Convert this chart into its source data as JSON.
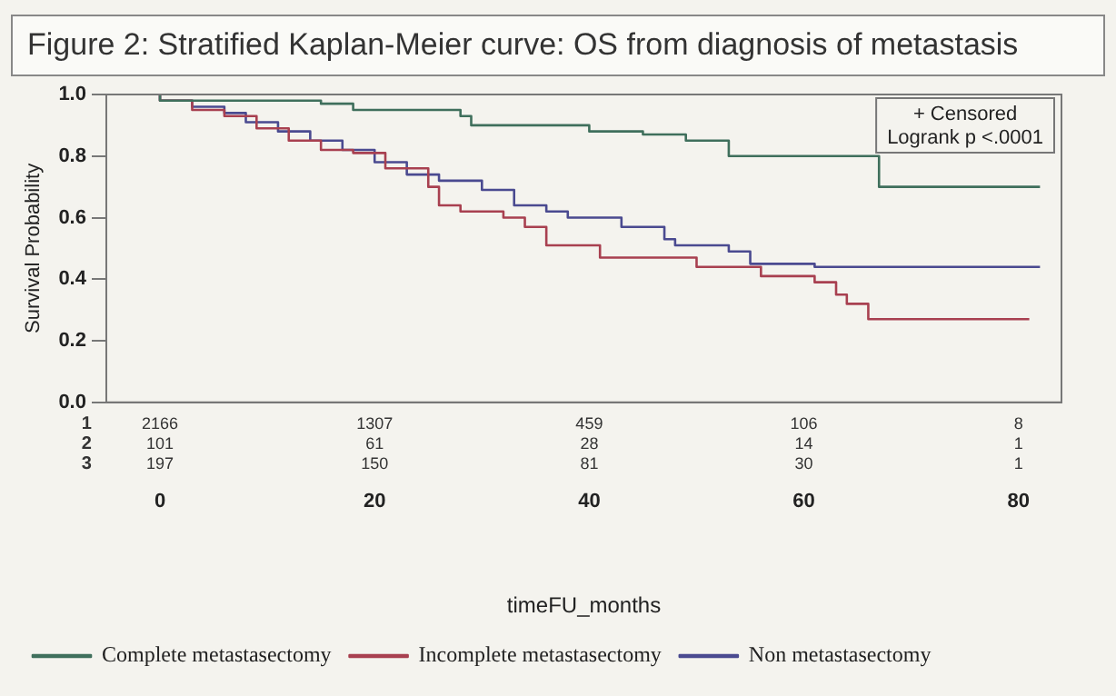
{
  "chart_data": {
    "type": "step",
    "title": "Figure 2: Stratified Kaplan-Meier curve: OS from diagnosis of metastasis",
    "xlabel": "timeFU_months",
    "ylabel": "Survival Probability",
    "xlim": [
      -5,
      84
    ],
    "xticks": [
      0,
      20,
      40,
      60,
      80
    ],
    "ylim": [
      0,
      1
    ],
    "yticks": [
      {
        "value": 0,
        "label": "0.0"
      },
      0.2,
      0.4,
      0.6,
      0.8,
      {
        "value": 1,
        "label": "1.0"
      }
    ],
    "grid": false,
    "legend": "bottom",
    "annotations": [
      "+ Censored",
      "Logrank p <.0001",
      "1",
      "2166",
      "1307",
      "459",
      "106",
      "8",
      "2",
      "101",
      "61",
      "28",
      "14",
      "1",
      "3",
      "197",
      "150",
      "81",
      "30",
      "1"
    ],
    "series": [
      {
        "name": "Complete metastasectomy",
        "color": "#3f6f5c",
        "x": [
          0,
          15,
          18,
          28,
          29,
          40,
          45,
          49,
          53,
          67,
          74,
          82
        ],
        "values": [
          1,
          0.98,
          0.97,
          0.95,
          0.93,
          0.9,
          0.88,
          0.87,
          0.85,
          0.8,
          0.7,
          0.7
        ]
      },
      {
        "name": "Incomplete metastasectomy",
        "color": "#a84050",
        "x": [
          0,
          3,
          6,
          9,
          12,
          15,
          18,
          21,
          25,
          26,
          28,
          32,
          34,
          36,
          41,
          50,
          56,
          61,
          63,
          64,
          66,
          71,
          81
        ],
        "values": [
          1,
          0.98,
          0.95,
          0.93,
          0.89,
          0.85,
          0.82,
          0.81,
          0.76,
          0.7,
          0.64,
          0.62,
          0.6,
          0.57,
          0.51,
          0.47,
          0.44,
          0.41,
          0.39,
          0.35,
          0.32,
          0.27,
          0.27
        ]
      },
      {
        "name": "Non metastasectomy",
        "color": "#4a4a90",
        "x": [
          0,
          3,
          6,
          8,
          11,
          14,
          17,
          20,
          23,
          26,
          30,
          33,
          36,
          38,
          43,
          47,
          48,
          53,
          55,
          61,
          68,
          82
        ],
        "values": [
          1,
          0.98,
          0.96,
          0.94,
          0.91,
          0.88,
          0.85,
          0.82,
          0.78,
          0.74,
          0.72,
          0.69,
          0.64,
          0.62,
          0.6,
          0.57,
          0.53,
          0.51,
          0.49,
          0.45,
          0.44,
          0.44
        ]
      }
    ]
  }
}
